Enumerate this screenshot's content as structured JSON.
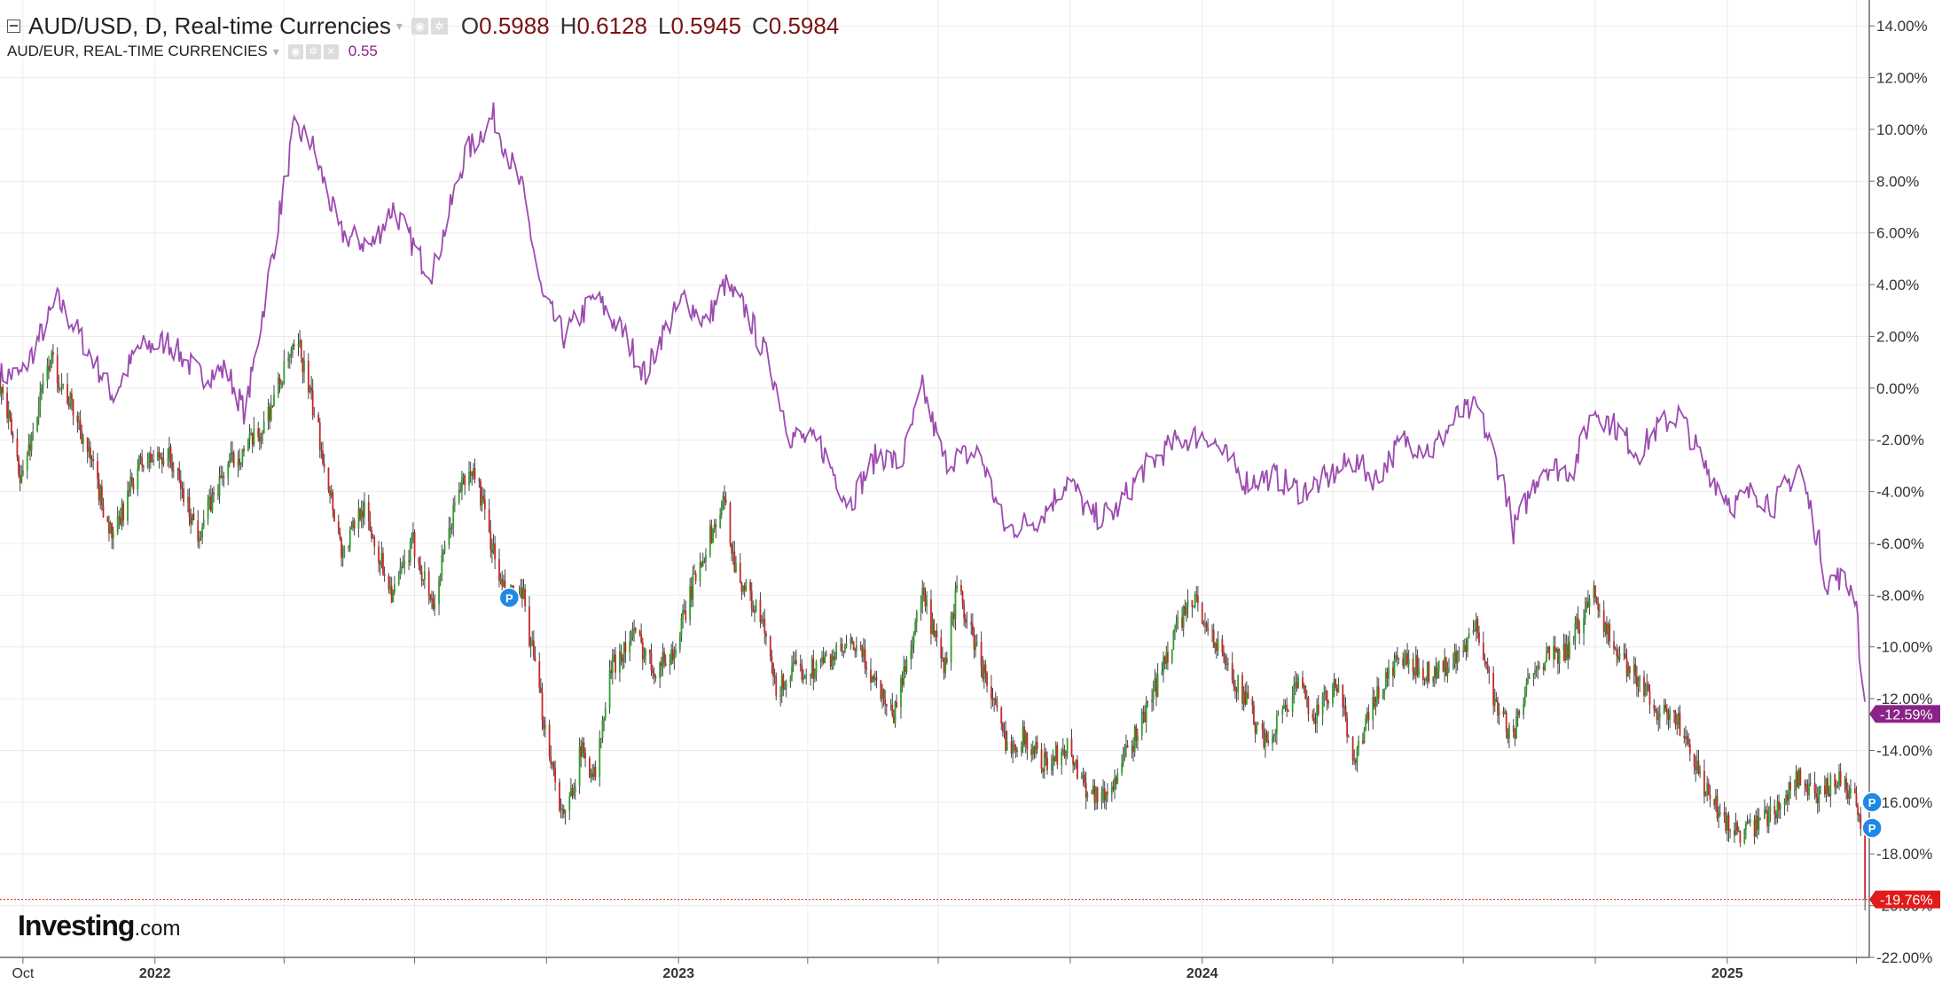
{
  "legend": {
    "primary_title": "AUD/USD, D, Real-time Currencies",
    "open_label": "O",
    "open": "0.5988",
    "high_label": "H",
    "high": "0.6128",
    "low_label": "L",
    "low": "0.5945",
    "close_label": "C",
    "close": "0.5984",
    "secondary_title": "AUD/EUR, REAL-TIME CURRENCIES",
    "secondary_value": "0.55"
  },
  "icons": {
    "collapse": "minus-square-icon",
    "eye": "eye-icon",
    "settings": "gear-icon",
    "remove": "close-icon",
    "dropdown": "chevron-down-icon",
    "marker": "P"
  },
  "logo": {
    "text": "Investing",
    "suffix": ".com"
  },
  "colors": {
    "up_candle": "#2ca02c",
    "down_candle": "#c62828",
    "comparison_line": "#9c4bb0",
    "last_price_tag": "#e01b1b",
    "comparison_tag": "#8a2388",
    "event_marker": "#1e88e5"
  },
  "chart_data": {
    "type": "candlestick",
    "y_unit": "%",
    "ylim": [
      -22,
      15
    ],
    "yticks": [
      "14.00%",
      "12.00%",
      "10.00%",
      "8.00%",
      "6.00%",
      "4.00%",
      "2.00%",
      "0.00%",
      "-2.00%",
      "-4.00%",
      "-6.00%",
      "-8.00%",
      "-10.00%",
      "-12.00%",
      "-14.00%",
      "-16.00%",
      "-18.00%",
      "-20.00%",
      "-22.00%"
    ],
    "xlim": [
      "2021-09-15",
      "2025-04-10"
    ],
    "xticks": [
      {
        "date": "2021-10-01",
        "label": "Oct"
      },
      {
        "date": "2022-01-01",
        "label": "2022"
      },
      {
        "date": "2022-04-01",
        "label": ""
      },
      {
        "date": "2022-07-01",
        "label": ""
      },
      {
        "date": "2022-10-01",
        "label": ""
      },
      {
        "date": "2023-01-01",
        "label": "2023"
      },
      {
        "date": "2023-04-01",
        "label": ""
      },
      {
        "date": "2023-07-01",
        "label": ""
      },
      {
        "date": "2023-10-01",
        "label": ""
      },
      {
        "date": "2024-01-01",
        "label": "2024"
      },
      {
        "date": "2024-04-01",
        "label": ""
      },
      {
        "date": "2024-07-01",
        "label": ""
      },
      {
        "date": "2024-10-01",
        "label": ""
      },
      {
        "date": "2025-01-01",
        "label": "2025"
      },
      {
        "date": "2025-04-01",
        "label": ""
      }
    ],
    "grid": true,
    "series": [
      {
        "name": "AUD/USD",
        "style": "candles",
        "last_value_label": "-19.76%",
        "keypoints": [
          [
            "2021-09-15",
            0.2
          ],
          [
            "2021-09-30",
            -3.5
          ],
          [
            "2021-10-20",
            1.2
          ],
          [
            "2021-11-10",
            -1.5
          ],
          [
            "2021-12-03",
            -5.9
          ],
          [
            "2021-12-20",
            -3.0
          ],
          [
            "2022-01-10",
            -2.5
          ],
          [
            "2022-01-31",
            -5.6
          ],
          [
            "2022-02-20",
            -3.0
          ],
          [
            "2022-03-15",
            -1.8
          ],
          [
            "2022-04-05",
            1.2
          ],
          [
            "2022-04-12",
            1.5
          ],
          [
            "2022-04-28",
            -2.5
          ],
          [
            "2022-05-12",
            -6.5
          ],
          [
            "2022-05-25",
            -4.5
          ],
          [
            "2022-06-16",
            -8.0
          ],
          [
            "2022-06-30",
            -6.0
          ],
          [
            "2022-07-14",
            -8.4
          ],
          [
            "2022-08-01",
            -3.8
          ],
          [
            "2022-08-12",
            -3.2
          ],
          [
            "2022-08-31",
            -7.8
          ],
          [
            "2022-09-15",
            -8.2
          ],
          [
            "2022-09-28",
            -12.5
          ],
          [
            "2022-10-13",
            -16.8
          ],
          [
            "2022-10-25",
            -14.0
          ],
          [
            "2022-11-04",
            -15.0
          ],
          [
            "2022-11-15",
            -10.8
          ],
          [
            "2022-12-01",
            -9.5
          ],
          [
            "2022-12-15",
            -10.8
          ],
          [
            "2022-12-29",
            -10.2
          ],
          [
            "2023-01-15",
            -6.8
          ],
          [
            "2023-02-02",
            -4.4
          ],
          [
            "2023-02-10",
            -7.0
          ],
          [
            "2023-03-01",
            -9.2
          ],
          [
            "2023-03-10",
            -11.8
          ],
          [
            "2023-03-20",
            -11.0
          ],
          [
            "2023-04-05",
            -10.8
          ],
          [
            "2023-04-20",
            -10.3
          ],
          [
            "2023-05-05",
            -10.0
          ],
          [
            "2023-05-31",
            -12.6
          ],
          [
            "2023-06-20",
            -8.0
          ],
          [
            "2023-07-05",
            -11.0
          ],
          [
            "2023-07-14",
            -7.8
          ],
          [
            "2023-08-01",
            -10.8
          ],
          [
            "2023-08-17",
            -13.8
          ],
          [
            "2023-08-30",
            -13.5
          ],
          [
            "2023-09-15",
            -14.6
          ],
          [
            "2023-09-28",
            -13.8
          ],
          [
            "2023-10-13",
            -15.5
          ],
          [
            "2023-10-26",
            -15.8
          ],
          [
            "2023-11-15",
            -13.5
          ],
          [
            "2023-11-30",
            -11.5
          ],
          [
            "2023-12-14",
            -9.2
          ],
          [
            "2023-12-28",
            -8.2
          ],
          [
            "2024-01-10",
            -9.9
          ],
          [
            "2024-01-31",
            -12.0
          ],
          [
            "2024-02-13",
            -13.8
          ],
          [
            "2024-03-07",
            -11.5
          ],
          [
            "2024-03-20",
            -12.6
          ],
          [
            "2024-04-04",
            -11.5
          ],
          [
            "2024-04-16",
            -14.3
          ],
          [
            "2024-05-01",
            -12.0
          ],
          [
            "2024-05-16",
            -10.5
          ],
          [
            "2024-06-10",
            -11.0
          ],
          [
            "2024-06-28",
            -10.5
          ],
          [
            "2024-07-11",
            -9.2
          ],
          [
            "2024-07-24",
            -12.3
          ],
          [
            "2024-08-05",
            -13.5
          ],
          [
            "2024-08-20",
            -10.5
          ],
          [
            "2024-09-10",
            -10.3
          ],
          [
            "2024-09-30",
            -7.8
          ],
          [
            "2024-10-15",
            -10.3
          ],
          [
            "2024-10-31",
            -11.2
          ],
          [
            "2024-11-14",
            -12.5
          ],
          [
            "2024-11-29",
            -13.0
          ],
          [
            "2024-12-16",
            -15.5
          ],
          [
            "2024-12-31",
            -16.8
          ],
          [
            "2025-01-13",
            -17.3
          ],
          [
            "2025-02-03",
            -16.3
          ],
          [
            "2025-02-20",
            -15.0
          ],
          [
            "2025-03-04",
            -16.0
          ],
          [
            "2025-03-18",
            -15.0
          ],
          [
            "2025-03-31",
            -15.8
          ],
          [
            "2025-04-03",
            -16.3
          ],
          [
            "2025-04-07",
            -19.76
          ]
        ]
      },
      {
        "name": "AUD/EUR",
        "style": "line",
        "last_value_label": "-12.59%",
        "keypoints": [
          [
            "2021-09-15",
            0.5
          ],
          [
            "2021-09-30",
            0.5
          ],
          [
            "2021-10-25",
            3.4
          ],
          [
            "2021-11-10",
            2.0
          ],
          [
            "2021-12-03",
            -0.3
          ],
          [
            "2021-12-20",
            1.5
          ],
          [
            "2022-01-10",
            1.8
          ],
          [
            "2022-02-01",
            0.5
          ],
          [
            "2022-02-20",
            0.7
          ],
          [
            "2022-03-05",
            -1.0
          ],
          [
            "2022-03-25",
            5.5
          ],
          [
            "2022-04-08",
            10.0
          ],
          [
            "2022-04-20",
            9.5
          ],
          [
            "2022-05-10",
            6.0
          ],
          [
            "2022-06-01",
            5.5
          ],
          [
            "2022-06-16",
            7.0
          ],
          [
            "2022-07-05",
            5.0
          ],
          [
            "2022-07-14",
            4.5
          ],
          [
            "2022-08-05",
            9.0
          ],
          [
            "2022-08-25",
            10.5
          ],
          [
            "2022-09-15",
            7.5
          ],
          [
            "2022-09-28",
            3.5
          ],
          [
            "2022-10-13",
            2.0
          ],
          [
            "2022-11-04",
            3.5
          ],
          [
            "2022-11-25",
            2.0
          ],
          [
            "2022-12-09",
            0.5
          ],
          [
            "2022-12-20",
            2.0
          ],
          [
            "2023-01-05",
            3.5
          ],
          [
            "2023-01-20",
            2.5
          ],
          [
            "2023-02-02",
            4.0
          ],
          [
            "2023-02-17",
            3.0
          ],
          [
            "2023-03-05",
            1.0
          ],
          [
            "2023-03-20",
            -1.8
          ],
          [
            "2023-04-10",
            -2.2
          ],
          [
            "2023-04-30",
            -4.5
          ],
          [
            "2023-05-20",
            -2.5
          ],
          [
            "2023-06-05",
            -3.0
          ],
          [
            "2023-06-20",
            0.0
          ],
          [
            "2023-07-05",
            -2.8
          ],
          [
            "2023-07-30",
            -2.5
          ],
          [
            "2023-08-17",
            -5.5
          ],
          [
            "2023-09-10",
            -5.0
          ],
          [
            "2023-09-30",
            -3.5
          ],
          [
            "2023-10-15",
            -5.0
          ],
          [
            "2023-11-01",
            -4.8
          ],
          [
            "2023-11-20",
            -3.2
          ],
          [
            "2023-12-15",
            -2.0
          ],
          [
            "2024-01-05",
            -1.8
          ],
          [
            "2024-01-31",
            -3.6
          ],
          [
            "2024-02-20",
            -3.4
          ],
          [
            "2024-03-10",
            -4.0
          ],
          [
            "2024-03-28",
            -3.5
          ],
          [
            "2024-04-15",
            -2.8
          ],
          [
            "2024-05-01",
            -3.5
          ],
          [
            "2024-05-20",
            -2.0
          ],
          [
            "2024-06-10",
            -2.4
          ],
          [
            "2024-06-28",
            -1.0
          ],
          [
            "2024-07-11",
            -0.8
          ],
          [
            "2024-07-30",
            -3.8
          ],
          [
            "2024-08-05",
            -5.5
          ],
          [
            "2024-08-25",
            -3.0
          ],
          [
            "2024-09-15",
            -3.2
          ],
          [
            "2024-09-30",
            -0.8
          ],
          [
            "2024-10-15",
            -1.5
          ],
          [
            "2024-10-31",
            -2.5
          ],
          [
            "2024-11-14",
            -1.5
          ],
          [
            "2024-11-29",
            -1.0
          ],
          [
            "2024-12-16",
            -3.0
          ],
          [
            "2025-01-05",
            -4.5
          ],
          [
            "2025-01-20",
            -4.0
          ],
          [
            "2025-02-03",
            -4.5
          ],
          [
            "2025-02-20",
            -3.0
          ],
          [
            "2025-03-06",
            -6.0
          ],
          [
            "2025-03-11",
            -7.5
          ],
          [
            "2025-03-20",
            -7.3
          ],
          [
            "2025-04-01",
            -8.0
          ],
          [
            "2025-04-04",
            -11.0
          ],
          [
            "2025-04-07",
            -12.59
          ]
        ]
      }
    ],
    "markers": [
      {
        "date": "2022-09-05",
        "value": -8.1,
        "label": "P"
      },
      {
        "date": "2025-04-07",
        "value": -16.0,
        "label": "P"
      },
      {
        "date": "2025-04-07",
        "value": -17.0,
        "label": "P"
      }
    ],
    "reference_line": {
      "value": -19.76,
      "style": "dotted"
    }
  }
}
